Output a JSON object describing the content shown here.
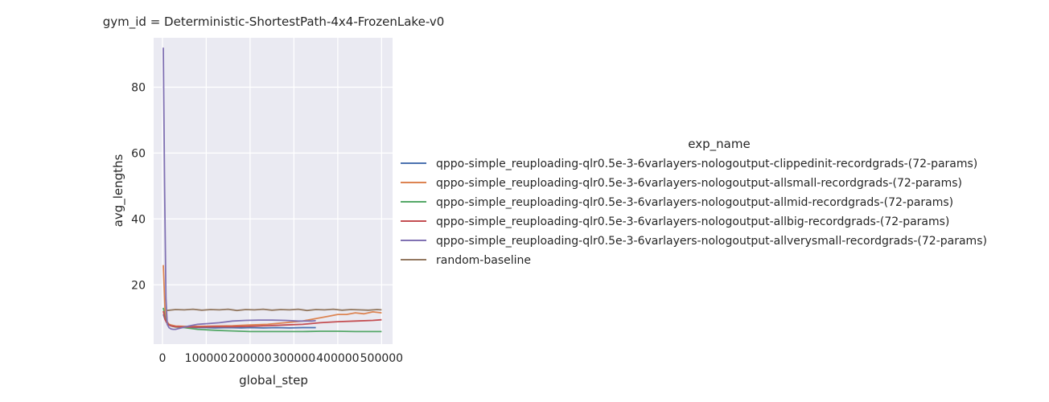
{
  "chart_data": {
    "type": "line",
    "title": "gym_id = Deterministic-ShortestPath-4x4-FrozenLake-v0",
    "xlabel": "global_step",
    "ylabel": "avg_lengths",
    "xlim": [
      -20000,
      525000
    ],
    "ylim": [
      2,
      95
    ],
    "xticks": [
      0,
      100000,
      200000,
      300000,
      400000,
      500000
    ],
    "xtick_labels": [
      "0",
      "100000",
      "200000",
      "300000",
      "400000",
      "500000"
    ],
    "yticks": [
      20,
      40,
      60,
      80
    ],
    "ytick_labels": [
      "20",
      "40",
      "60",
      "80"
    ],
    "grid": true,
    "background": "#eaeaf2",
    "legend": {
      "title": "exp_name",
      "placement": "right"
    },
    "series": [
      {
        "name": "qppo-simple_reuploading-qlr0.5e-3-6varlayers-nologoutput-clippedinit-recordgrads-(72-params)",
        "color": "#4c72b0",
        "x": [
          2000,
          6000,
          10000,
          15000,
          20000,
          25000,
          30000,
          40000,
          60000,
          80000,
          100000,
          120000,
          150000,
          180000,
          200000,
          230000,
          260000,
          290000,
          320000,
          350000
        ],
        "y": [
          11,
          9.5,
          8.5,
          8,
          7.6,
          7.4,
          7.3,
          7.2,
          7.1,
          7.0,
          7.0,
          6.9,
          7.0,
          6.9,
          7.0,
          6.9,
          7.0,
          6.9,
          7.0,
          7.0
        ]
      },
      {
        "name": "qppo-simple_reuploading-qlr0.5e-3-6varlayers-nologoutput-allsmall-recordgrads-(72-params)",
        "color": "#dd8452",
        "x": [
          2000,
          6000,
          10000,
          15000,
          20000,
          30000,
          50000,
          80000,
          120000,
          160000,
          200000,
          240000,
          280000,
          320000,
          360000,
          380000,
          400000,
          420000,
          440000,
          460000,
          480000,
          500000
        ],
        "y": [
          26,
          12,
          9,
          8,
          7.8,
          7.5,
          7.4,
          7.4,
          7.5,
          7.6,
          7.8,
          8,
          8.5,
          9,
          10,
          10.5,
          11,
          11,
          11.5,
          11.2,
          11.8,
          11.5
        ]
      },
      {
        "name": "qppo-simple_reuploading-qlr0.5e-3-6varlayers-nologoutput-allmid-recordgrads-(72-params)",
        "color": "#55a868",
        "x": [
          2000,
          6000,
          10000,
          15000,
          20000,
          30000,
          50000,
          80000,
          120000,
          160000,
          200000,
          240000,
          280000,
          320000,
          360000,
          400000,
          440000,
          480000,
          500000
        ],
        "y": [
          13,
          10,
          8.5,
          7.8,
          7.5,
          7.2,
          7,
          6.5,
          6.2,
          6.0,
          5.8,
          5.8,
          5.8,
          5.8,
          5.9,
          5.9,
          5.8,
          5.8,
          5.8
        ]
      },
      {
        "name": "qppo-simple_reuploading-qlr0.5e-3-6varlayers-nologoutput-allbig-recordgrads-(72-params)",
        "color": "#c44e52",
        "x": [
          2000,
          6000,
          10000,
          15000,
          20000,
          30000,
          50000,
          80000,
          120000,
          160000,
          200000,
          240000,
          280000,
          320000,
          360000,
          400000,
          440000,
          480000,
          500000
        ],
        "y": [
          12,
          9.5,
          8.5,
          7.8,
          7.5,
          7.3,
          7.2,
          7.2,
          7.3,
          7.3,
          7.4,
          7.6,
          7.8,
          8.0,
          8.5,
          8.8,
          9.0,
          9.2,
          9.4
        ]
      },
      {
        "name": "qppo-simple_reuploading-qlr0.5e-3-6varlayers-nologoutput-allverysmall-recordgrads-(72-params)",
        "color": "#8172b3",
        "x": [
          2000,
          5000,
          8000,
          11000,
          15000,
          20000,
          25000,
          30000,
          40000,
          60000,
          80000,
          100000,
          130000,
          160000,
          190000,
          220000,
          250000,
          280000,
          310000,
          340000,
          350000
        ],
        "y": [
          92,
          50,
          16,
          8,
          7.0,
          6.6,
          6.5,
          6.5,
          6.8,
          7.5,
          8,
          8.2,
          8.5,
          9,
          9.2,
          9.3,
          9.3,
          9.2,
          9.0,
          9.0,
          9.1
        ]
      },
      {
        "name": "random-baseline",
        "color": "#937860",
        "x": [
          10000,
          30000,
          50000,
          70000,
          90000,
          110000,
          130000,
          150000,
          170000,
          190000,
          210000,
          230000,
          250000,
          270000,
          290000,
          310000,
          330000,
          350000,
          370000,
          390000,
          410000,
          430000,
          450000,
          470000,
          490000,
          500000
        ],
        "y": [
          12.2,
          12.5,
          12.4,
          12.6,
          12.3,
          12.5,
          12.4,
          12.6,
          12.2,
          12.5,
          12.4,
          12.6,
          12.3,
          12.5,
          12.4,
          12.6,
          12.2,
          12.5,
          12.4,
          12.6,
          12.3,
          12.5,
          12.4,
          12.3,
          12.5,
          12.4
        ]
      }
    ]
  }
}
